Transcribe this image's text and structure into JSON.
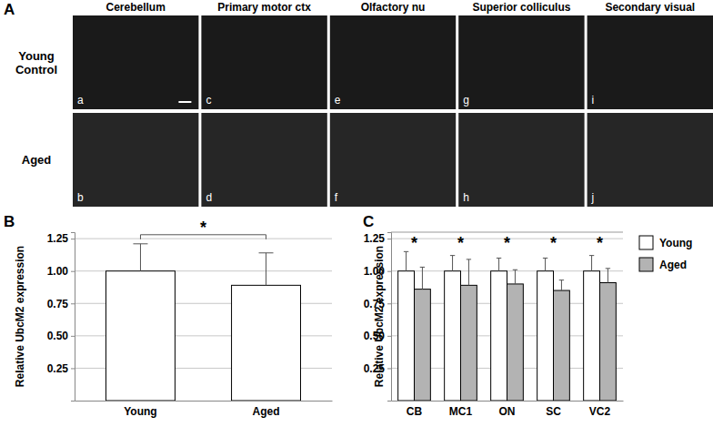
{
  "image_grid": {
    "panel": "A",
    "columns": [
      "Cerebellum",
      "Primary motor ctx",
      "Olfactory nu",
      "Superior colliculus",
      "Secondary visual"
    ],
    "row_labels": [
      [
        "Young",
        "Control"
      ],
      [
        "Aged"
      ]
    ],
    "image_letters": [
      [
        "a",
        "c",
        "e",
        "g",
        "i"
      ],
      [
        "b",
        "d",
        "f",
        "h",
        "j"
      ]
    ]
  },
  "chart_data": [
    {
      "panel": "B",
      "type": "bar",
      "categories": [
        "Young",
        "Aged"
      ],
      "values": [
        1.0,
        0.89
      ],
      "errors": [
        0.21,
        0.25
      ],
      "color": "#ffffff",
      "y_label": "Relative UbcM2 expression",
      "ylim": [
        0,
        1.3
      ],
      "yticks": [
        0.25,
        {
          "value": 0.5,
          "label": "0.50"
        },
        0.75,
        {
          "value": 1,
          "label": "1.00"
        },
        1.25
      ],
      "grid": true,
      "annotations": [
        "*"
      ]
    },
    {
      "panel": "C",
      "type": "bar",
      "categories": [
        "CB",
        "MC1",
        "ON",
        "SC",
        "VC2"
      ],
      "series": [
        {
          "name": "Young",
          "color": "#ffffff",
          "values": [
            1.0,
            1.0,
            1.0,
            1.0,
            1.0
          ],
          "errors": [
            0.15,
            0.12,
            0.1,
            0.1,
            0.12
          ]
        },
        {
          "name": "Aged",
          "color": "#b3b3b3",
          "values": [
            0.86,
            0.89,
            0.9,
            0.85,
            0.91
          ],
          "errors": [
            0.17,
            0.2,
            0.11,
            0.08,
            0.11
          ]
        }
      ],
      "y_label": "Relative UbcM2 expression",
      "ylim": [
        0,
        1.3
      ],
      "yticks": [
        0.25,
        {
          "value": 0.5,
          "label": "0.50"
        },
        0.75,
        {
          "value": 1,
          "label": "1.00"
        },
        1.25
      ],
      "grid": true,
      "legend": "right",
      "annotations": [
        "*",
        "*",
        "*",
        "*",
        "*"
      ]
    }
  ]
}
